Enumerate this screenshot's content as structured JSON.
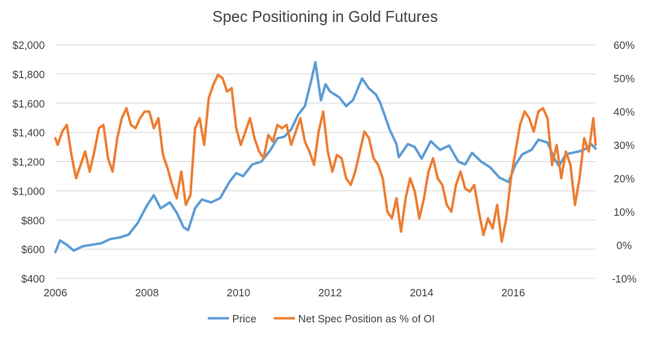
{
  "chart_data": {
    "type": "line",
    "title": "Spec Positioning in Gold Futures",
    "grid": "horizontal",
    "legend_position": "bottom",
    "x_axis": {
      "range": [
        2006,
        2017.8
      ],
      "ticks": [
        "2006",
        "2008",
        "2010",
        "2012",
        "2014",
        "2016"
      ],
      "tick_values": [
        2006,
        2008,
        2010,
        2012,
        2014,
        2016
      ]
    },
    "y_left": {
      "range": [
        400,
        2000
      ],
      "ticks": [
        "$400",
        "$600",
        "$800",
        "$1,000",
        "$1,200",
        "$1,400",
        "$1,600",
        "$1,800",
        "$2,000"
      ],
      "tick_values": [
        400,
        600,
        800,
        1000,
        1200,
        1400,
        1600,
        1800,
        2000
      ]
    },
    "y_right": {
      "range": [
        -10,
        60
      ],
      "ticks": [
        "-10%",
        "0%",
        "10%",
        "20%",
        "30%",
        "40%",
        "50%",
        "60%"
      ],
      "tick_values": [
        -10,
        0,
        10,
        20,
        30,
        40,
        50,
        60
      ]
    },
    "series": [
      {
        "name": "Price",
        "color": "#5b9bd5",
        "axis": "left",
        "points": [
          [
            2006.0,
            580
          ],
          [
            2006.1,
            660
          ],
          [
            2006.25,
            630
          ],
          [
            2006.4,
            590
          ],
          [
            2006.6,
            620
          ],
          [
            2006.8,
            630
          ],
          [
            2007.0,
            640
          ],
          [
            2007.2,
            670
          ],
          [
            2007.4,
            680
          ],
          [
            2007.6,
            700
          ],
          [
            2007.8,
            780
          ],
          [
            2008.0,
            900
          ],
          [
            2008.15,
            970
          ],
          [
            2008.3,
            880
          ],
          [
            2008.5,
            920
          ],
          [
            2008.65,
            850
          ],
          [
            2008.8,
            750
          ],
          [
            2008.9,
            730
          ],
          [
            2009.05,
            880
          ],
          [
            2009.2,
            940
          ],
          [
            2009.4,
            920
          ],
          [
            2009.6,
            950
          ],
          [
            2009.8,
            1060
          ],
          [
            2009.95,
            1120
          ],
          [
            2010.1,
            1100
          ],
          [
            2010.3,
            1180
          ],
          [
            2010.5,
            1200
          ],
          [
            2010.7,
            1280
          ],
          [
            2010.85,
            1360
          ],
          [
            2011.0,
            1370
          ],
          [
            2011.15,
            1420
          ],
          [
            2011.3,
            1520
          ],
          [
            2011.45,
            1580
          ],
          [
            2011.6,
            1770
          ],
          [
            2011.68,
            1880
          ],
          [
            2011.8,
            1620
          ],
          [
            2011.9,
            1730
          ],
          [
            2012.0,
            1680
          ],
          [
            2012.2,
            1640
          ],
          [
            2012.35,
            1580
          ],
          [
            2012.5,
            1620
          ],
          [
            2012.7,
            1770
          ],
          [
            2012.85,
            1700
          ],
          [
            2013.0,
            1660
          ],
          [
            2013.1,
            1600
          ],
          [
            2013.3,
            1420
          ],
          [
            2013.45,
            1320
          ],
          [
            2013.5,
            1230
          ],
          [
            2013.7,
            1320
          ],
          [
            2013.85,
            1300
          ],
          [
            2014.0,
            1220
          ],
          [
            2014.2,
            1340
          ],
          [
            2014.4,
            1280
          ],
          [
            2014.6,
            1310
          ],
          [
            2014.8,
            1200
          ],
          [
            2014.95,
            1180
          ],
          [
            2015.1,
            1260
          ],
          [
            2015.3,
            1200
          ],
          [
            2015.5,
            1160
          ],
          [
            2015.7,
            1090
          ],
          [
            2015.9,
            1060
          ],
          [
            2016.05,
            1180
          ],
          [
            2016.2,
            1250
          ],
          [
            2016.4,
            1280
          ],
          [
            2016.55,
            1350
          ],
          [
            2016.75,
            1330
          ],
          [
            2016.9,
            1220
          ],
          [
            2017.0,
            1170
          ],
          [
            2017.15,
            1250
          ],
          [
            2017.3,
            1260
          ],
          [
            2017.45,
            1270
          ],
          [
            2017.6,
            1290
          ],
          [
            2017.7,
            1320
          ],
          [
            2017.8,
            1290
          ]
        ]
      },
      {
        "name": "Net Spec Position as % of OI",
        "color": "#ed7d31",
        "axis": "right",
        "points": [
          [
            2006.0,
            32
          ],
          [
            2006.05,
            30
          ],
          [
            2006.15,
            34
          ],
          [
            2006.25,
            36
          ],
          [
            2006.35,
            27
          ],
          [
            2006.45,
            20
          ],
          [
            2006.55,
            24
          ],
          [
            2006.65,
            28
          ],
          [
            2006.75,
            22
          ],
          [
            2006.85,
            28
          ],
          [
            2006.95,
            35
          ],
          [
            2007.05,
            36
          ],
          [
            2007.15,
            26
          ],
          [
            2007.25,
            22
          ],
          [
            2007.35,
            32
          ],
          [
            2007.45,
            38
          ],
          [
            2007.55,
            41
          ],
          [
            2007.65,
            36
          ],
          [
            2007.75,
            35
          ],
          [
            2007.85,
            38
          ],
          [
            2007.95,
            40
          ],
          [
            2008.05,
            40
          ],
          [
            2008.15,
            35
          ],
          [
            2008.25,
            38
          ],
          [
            2008.35,
            27
          ],
          [
            2008.45,
            23
          ],
          [
            2008.55,
            18
          ],
          [
            2008.65,
            14
          ],
          [
            2008.75,
            22
          ],
          [
            2008.85,
            12
          ],
          [
            2008.95,
            15
          ],
          [
            2009.05,
            35
          ],
          [
            2009.15,
            38
          ],
          [
            2009.25,
            30
          ],
          [
            2009.35,
            44
          ],
          [
            2009.45,
            48
          ],
          [
            2009.55,
            51
          ],
          [
            2009.65,
            50
          ],
          [
            2009.75,
            46
          ],
          [
            2009.85,
            47
          ],
          [
            2009.95,
            35
          ],
          [
            2010.05,
            30
          ],
          [
            2010.15,
            34
          ],
          [
            2010.25,
            38
          ],
          [
            2010.35,
            32
          ],
          [
            2010.45,
            28
          ],
          [
            2010.55,
            26
          ],
          [
            2010.65,
            33
          ],
          [
            2010.75,
            31
          ],
          [
            2010.85,
            36
          ],
          [
            2010.95,
            35
          ],
          [
            2011.05,
            36
          ],
          [
            2011.15,
            30
          ],
          [
            2011.25,
            34
          ],
          [
            2011.35,
            38
          ],
          [
            2011.45,
            31
          ],
          [
            2011.55,
            28
          ],
          [
            2011.65,
            24
          ],
          [
            2011.75,
            34
          ],
          [
            2011.85,
            40
          ],
          [
            2011.95,
            28
          ],
          [
            2012.05,
            22
          ],
          [
            2012.15,
            27
          ],
          [
            2012.25,
            26
          ],
          [
            2012.35,
            20
          ],
          [
            2012.45,
            18
          ],
          [
            2012.55,
            22
          ],
          [
            2012.65,
            28
          ],
          [
            2012.75,
            34
          ],
          [
            2012.85,
            32
          ],
          [
            2012.95,
            26
          ],
          [
            2013.05,
            24
          ],
          [
            2013.15,
            20
          ],
          [
            2013.25,
            10
          ],
          [
            2013.35,
            8
          ],
          [
            2013.45,
            14
          ],
          [
            2013.55,
            4
          ],
          [
            2013.65,
            14
          ],
          [
            2013.75,
            20
          ],
          [
            2013.85,
            16
          ],
          [
            2013.95,
            8
          ],
          [
            2014.05,
            14
          ],
          [
            2014.15,
            22
          ],
          [
            2014.25,
            26
          ],
          [
            2014.35,
            20
          ],
          [
            2014.45,
            18
          ],
          [
            2014.55,
            12
          ],
          [
            2014.65,
            10
          ],
          [
            2014.75,
            18
          ],
          [
            2014.85,
            22
          ],
          [
            2014.95,
            17
          ],
          [
            2015.05,
            16
          ],
          [
            2015.15,
            18
          ],
          [
            2015.25,
            10
          ],
          [
            2015.35,
            3
          ],
          [
            2015.45,
            8
          ],
          [
            2015.55,
            5
          ],
          [
            2015.65,
            12
          ],
          [
            2015.75,
            1
          ],
          [
            2015.85,
            8
          ],
          [
            2015.95,
            20
          ],
          [
            2016.05,
            28
          ],
          [
            2016.15,
            36
          ],
          [
            2016.25,
            40
          ],
          [
            2016.35,
            38
          ],
          [
            2016.45,
            34
          ],
          [
            2016.55,
            40
          ],
          [
            2016.65,
            41
          ],
          [
            2016.75,
            38
          ],
          [
            2016.85,
            24
          ],
          [
            2016.95,
            30
          ],
          [
            2017.05,
            20
          ],
          [
            2017.15,
            28
          ],
          [
            2017.25,
            24
          ],
          [
            2017.35,
            12
          ],
          [
            2017.45,
            20
          ],
          [
            2017.55,
            32
          ],
          [
            2017.65,
            28
          ],
          [
            2017.75,
            38
          ],
          [
            2017.8,
            30
          ]
        ]
      }
    ]
  }
}
